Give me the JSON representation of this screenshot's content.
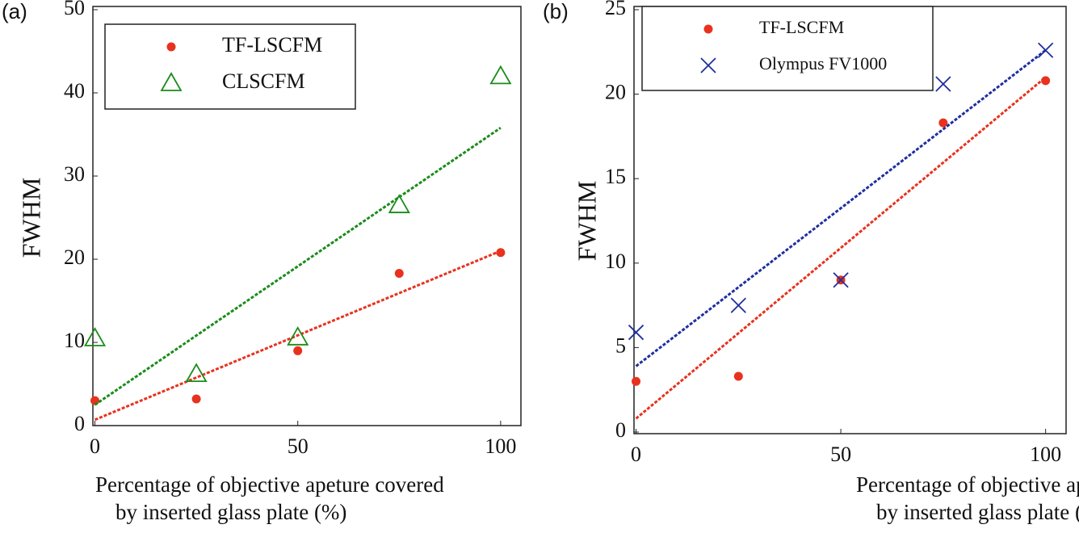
{
  "chart_data": [
    {
      "type": "scatter",
      "label": "(a)",
      "xlabel": [
        "Percentage of objective apeture covered",
        "by inserted glass plate (%)"
      ],
      "ylabel": "FWHM",
      "xlim": [
        -0.5,
        105
      ],
      "ylim": [
        0,
        50
      ],
      "xticks": [
        0,
        50,
        100
      ],
      "yticks": [
        0,
        10,
        20,
        30,
        40,
        50
      ],
      "legend": "upper-left",
      "series": [
        {
          "name": "TF-LSCFM",
          "color": "#e8321e",
          "marker": "circle",
          "x": [
            0,
            25,
            50,
            75,
            100
          ],
          "values": [
            3,
            3.2,
            9,
            18.3,
            20.8
          ],
          "fit": {
            "x": [
              0,
              100
            ],
            "values": [
              0.7,
              21
            ]
          }
        },
        {
          "name": "CLSCFM",
          "color": "#1a8c1a",
          "marker": "triangle",
          "x": [
            0,
            25,
            50,
            75,
            100
          ],
          "values": [
            10.5,
            6.2,
            10.6,
            26.5,
            42
          ],
          "fit": {
            "x": [
              0,
              100
            ],
            "values": [
              2.5,
              35.8
            ]
          }
        }
      ]
    },
    {
      "type": "scatter",
      "label": "(b)",
      "xlabel": [
        "Percentage of objective apeture covered",
        "by inserted glass plate (%)"
      ],
      "ylabel": "FWHM",
      "xlim": [
        -0.5,
        105
      ],
      "ylim": [
        0,
        25
      ],
      "xticks": [
        0,
        50,
        100
      ],
      "yticks": [
        0,
        5,
        10,
        15,
        20,
        25
      ],
      "legend": "upper-left",
      "series": [
        {
          "name": "TF-LSCFM",
          "color": "#e8321e",
          "marker": "circle",
          "x": [
            0,
            25,
            50,
            75,
            100
          ],
          "values": [
            3,
            3.3,
            9,
            18.3,
            20.8
          ],
          "fit": {
            "x": [
              0,
              100
            ],
            "values": [
              0.8,
              21
            ]
          }
        },
        {
          "name": "Olympus FV1000",
          "color": "#1f2f9f",
          "marker": "cross",
          "x": [
            0,
            25,
            50,
            75,
            100
          ],
          "values": [
            5.9,
            7.5,
            9,
            20.6,
            22.6
          ],
          "fit": {
            "x": [
              0,
              100
            ],
            "values": [
              3.9,
              22.6
            ]
          }
        }
      ]
    }
  ]
}
